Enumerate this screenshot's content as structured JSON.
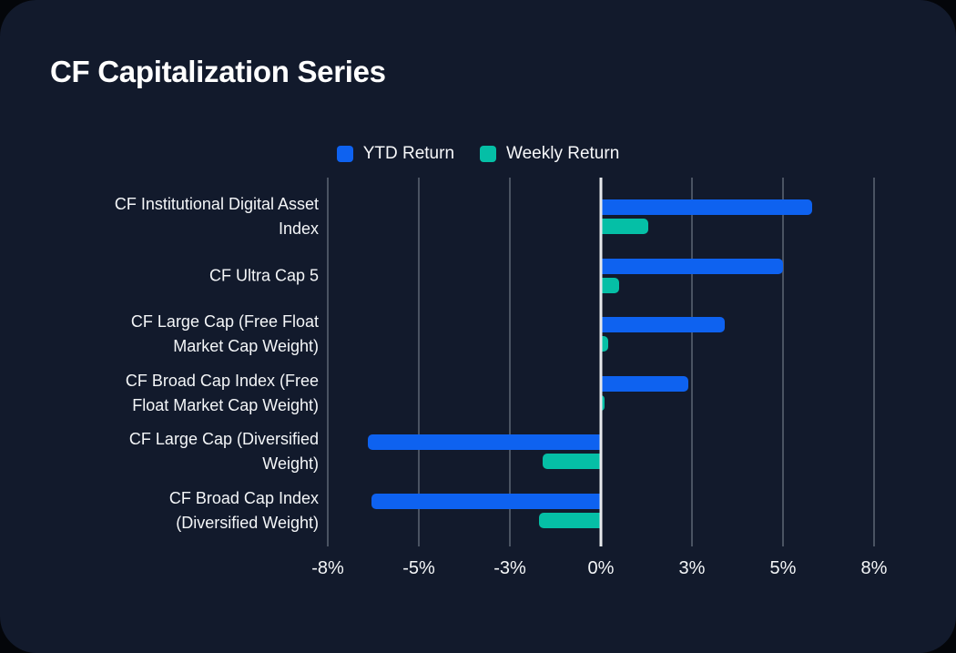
{
  "title": "CF Capitalization Series",
  "colors": {
    "background": "#121a2c",
    "ytd_blue": "#0e62f0",
    "weekly_teal": "#05bfa6",
    "gridline": "#4a5362",
    "zero_line": "#e7e9ec",
    "text": "#f4f6f8"
  },
  "legend": {
    "items": [
      {
        "label": "YTD Return",
        "color": "#0e62f0"
      },
      {
        "label": "Weekly Return",
        "color": "#05bfa6"
      }
    ]
  },
  "chart_data": {
    "type": "bar",
    "orientation": "horizontal",
    "title": "CF Capitalization Series",
    "unit": "%",
    "grid": true,
    "legend_position": "top",
    "categories": [
      "CF Institutional Digital Asset Index",
      "CF Ultra Cap 5",
      "CF Large Cap (Free Float Market Cap Weight)",
      "CF Broad Cap Index (Free Float Market Cap Weight)",
      "CF Large Cap (Diversified Weight)",
      "CF Broad Cap Index (Diversified Weight)"
    ],
    "series": [
      {
        "name": "YTD Return",
        "key": "ytd",
        "color": "#0e62f0",
        "values": [
          5.8,
          5.0,
          3.4,
          2.4,
          -6.4,
          -6.3
        ]
      },
      {
        "name": "Weekly Return",
        "key": "weekly",
        "color": "#05bfa6",
        "values": [
          1.3,
          0.5,
          0.2,
          0.1,
          -1.6,
          -1.7
        ]
      }
    ],
    "x_ticks": [
      {
        "label": "-8%",
        "value": -7.5
      },
      {
        "label": "-5%",
        "value": -5
      },
      {
        "label": "-3%",
        "value": -2.5
      },
      {
        "label": "0%",
        "value": 0
      },
      {
        "label": "3%",
        "value": 2.5
      },
      {
        "label": "5%",
        "value": 5
      },
      {
        "label": "8%",
        "value": 7.5
      }
    ],
    "xlim": [
      -7.5,
      7.5
    ]
  }
}
